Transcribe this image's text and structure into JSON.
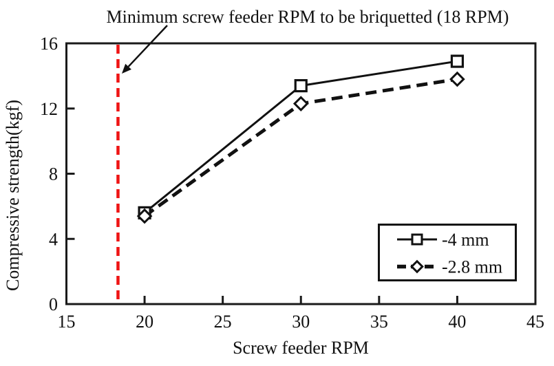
{
  "chart_data": {
    "type": "line",
    "title": "",
    "xlabel": "Screw feeder RPM",
    "ylabel": "Compressive strength(kgf)",
    "xlim": [
      15,
      45
    ],
    "ylim": [
      0,
      16
    ],
    "xticks": [
      15,
      20,
      25,
      30,
      35,
      40,
      45
    ],
    "yticks": [
      0,
      4,
      8,
      12,
      16
    ],
    "x": [
      20,
      30,
      40
    ],
    "series": [
      {
        "name": "-4 mm",
        "marker": "square",
        "line_style": "solid",
        "color": "#111111",
        "values": [
          5.6,
          13.4,
          14.9
        ]
      },
      {
        "name": "-2.8 mm",
        "marker": "diamond",
        "line_style": "dashed",
        "color": "#111111",
        "values": [
          5.4,
          12.3,
          13.8
        ]
      }
    ],
    "reference_line": {
      "orientation": "vertical",
      "x": 18.3,
      "style": "dashed",
      "color": "#ee1414"
    },
    "annotation": {
      "text": "Minimum screw feeder RPM to be briquetted (18 RPM)",
      "refers_to": "reference_line"
    },
    "legend": {
      "position": "lower-right",
      "entries": [
        "-4 mm",
        "-2.8 mm"
      ],
      "border_color": "#111111"
    },
    "grid": false,
    "axis_color": "#1a1a1a",
    "background": "#ffffff"
  }
}
